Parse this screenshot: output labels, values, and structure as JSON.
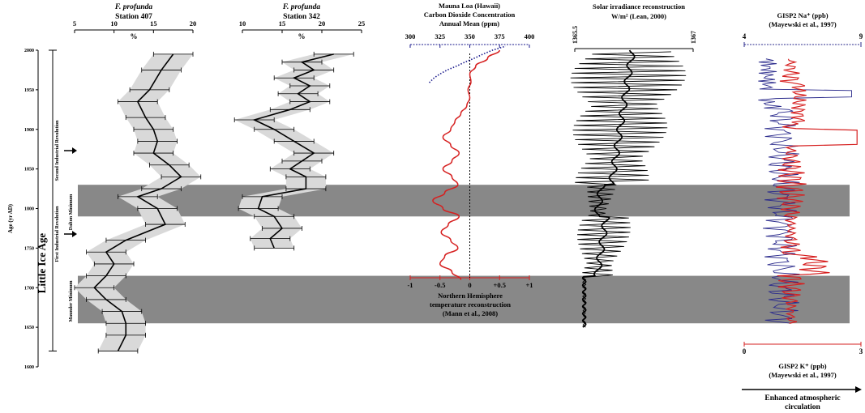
{
  "chart_data": {
    "type": "line",
    "age_axis": {
      "label": "Age (yr AD)",
      "ticks": [
        1600,
        1650,
        1700,
        1750,
        1800,
        1850,
        1900,
        1950,
        2000
      ],
      "range": [
        1600,
        2000
      ]
    },
    "periods": {
      "little_ice_age": {
        "label": "Little Ice Age",
        "range": [
          1620,
          2000
        ]
      },
      "dalton": {
        "label": "Dalton Minimum",
        "range": [
          1790,
          1830
        ]
      },
      "maunder": {
        "label": "Maunder Minimum",
        "range": [
          1655,
          1715
        ]
      }
    },
    "arrows": [
      {
        "label": "Second Industrial Revolution",
        "year": 1875
      },
      {
        "label": "First Industrial Revolution",
        "year": 1770
      }
    ],
    "panels": [
      {
        "id": "station407",
        "title_line1": "F. profunda",
        "title_line2": "Station 407",
        "unit": "%",
        "xlim": [
          5,
          20
        ],
        "ticks": [
          5,
          10,
          15,
          20
        ],
        "series": {
          "years": [
            1995,
            1975,
            1950,
            1935,
            1915,
            1900,
            1885,
            1870,
            1855,
            1840,
            1825,
            1815,
            1800,
            1780,
            1760,
            1745,
            1730,
            1715,
            1700,
            1685,
            1670,
            1655,
            1640,
            1620
          ],
          "values": [
            17.5,
            16,
            14.5,
            13,
            14,
            15,
            15.5,
            15,
            17,
            18.5,
            16,
            13,
            15.5,
            16.5,
            11.5,
            9,
            10,
            9,
            7.5,
            9,
            11,
            11.5,
            11.5,
            10.5
          ],
          "errors": [
            2.5,
            2.5,
            2.5,
            2.5,
            2.5,
            2.5,
            2.5,
            2.5,
            2.5,
            2.5,
            2.5,
            2.5,
            2.5,
            2.5,
            2.5,
            2.5,
            2.5,
            2.5,
            2.5,
            2.5,
            2.5,
            2.5,
            2.5,
            2.5
          ]
        }
      },
      {
        "id": "station342",
        "title_line1": "F. profunda",
        "title_line2": "Station 342",
        "unit": "%",
        "xlim": [
          10,
          25
        ],
        "ticks": [
          10,
          15,
          20,
          25
        ],
        "series": {
          "years": [
            1995,
            1985,
            1975,
            1965,
            1955,
            1945,
            1935,
            1925,
            1912,
            1900,
            1885,
            1870,
            1860,
            1850,
            1840,
            1825,
            1815,
            1800,
            1790,
            1775,
            1762,
            1750
          ],
          "values": [
            21.5,
            17.5,
            19,
            16.5,
            18.5,
            17,
            18.5,
            16,
            11.5,
            14,
            16.5,
            19,
            17.5,
            16,
            18,
            18,
            12.5,
            12,
            14,
            15,
            13.5,
            14
          ],
          "errors": [
            2.5,
            2.5,
            2.5,
            2.5,
            2.5,
            2.5,
            2.5,
            2.5,
            2.5,
            2.5,
            2.5,
            2.5,
            2.5,
            2.5,
            2.5,
            2.5,
            2.5,
            2.5,
            2.5,
            2.5,
            2.5,
            2.5
          ]
        }
      },
      {
        "id": "co2_temp",
        "top_title": [
          "Mauna Loa (Hawaii)",
          "Carbon Dioxide Concentration",
          "Annual Mean (ppm)"
        ],
        "top_xlim": [
          300,
          400
        ],
        "top_ticks": [
          300,
          325,
          350,
          375,
          400
        ],
        "co2": {
          "years": [
            1959,
            1965,
            1970,
            1975,
            1980,
            1985,
            1990,
            1995,
            2000,
            2005
          ],
          "ppm": [
            316,
            320,
            325,
            331,
            339,
            346,
            354,
            361,
            369,
            380
          ]
        },
        "bottom_title": [
          "Northern Hemisphere",
          "temperature reconstruction",
          "(Mann et al., 2008)"
        ],
        "bottom_xlim": [
          -1,
          1
        ],
        "bottom_ticks": [
          -1,
          -0.5,
          0,
          0.5,
          1
        ],
        "bottom_tick_labels": [
          "-1",
          "-0.5",
          "0",
          "+0.5",
          "+1"
        ],
        "temperature": {
          "years": [
            1710,
            1720,
            1730,
            1740,
            1750,
            1760,
            1770,
            1780,
            1790,
            1800,
            1810,
            1820,
            1830,
            1840,
            1850,
            1860,
            1870,
            1880,
            1890,
            1900,
            1910,
            1920,
            1930,
            1940,
            1950,
            1960,
            1970,
            1980,
            1990,
            2000
          ],
          "anomaly": [
            -0.15,
            -0.3,
            -0.5,
            -0.42,
            -0.2,
            -0.32,
            -0.48,
            -0.36,
            -0.18,
            -0.45,
            -0.62,
            -0.42,
            -0.2,
            -0.3,
            -0.45,
            -0.3,
            -0.18,
            -0.32,
            -0.45,
            -0.32,
            -0.25,
            -0.15,
            -0.05,
            0.0,
            -0.03,
            0.02,
            0.0,
            0.1,
            0.3,
            0.5
          ]
        }
      },
      {
        "id": "solar",
        "title": [
          "Solar irradiance reconstruction",
          "W/m² (Lean, 2000)"
        ],
        "xlim": [
          1365.5,
          1367
        ],
        "ticks": [
          1365.5,
          1367
        ],
        "tick_labels": [
          "1365.5",
          "1367"
        ]
      },
      {
        "id": "gisp2",
        "top_title": [
          "GISP2 Na⁺ (ppb)",
          "(Mayewski et al., 1997)"
        ],
        "top_xlim": [
          4,
          9
        ],
        "top_ticks": [
          4,
          9
        ],
        "bottom_title": [
          "GISP2 K⁺ (ppb)",
          "(Mayewski et al., 1997)"
        ],
        "bottom_xlim": [
          0,
          3
        ],
        "bottom_ticks": [
          0,
          3
        ],
        "arrow_label": [
          "Enhanced atmospheric",
          "circulation"
        ]
      }
    ],
    "colors": {
      "shading": "#888888",
      "envelope": "#d9d9d9",
      "temperature": "#d62020",
      "co2": "#1a1a8c",
      "potassium": "#d62020",
      "sodium": "#2b2b8c"
    }
  }
}
